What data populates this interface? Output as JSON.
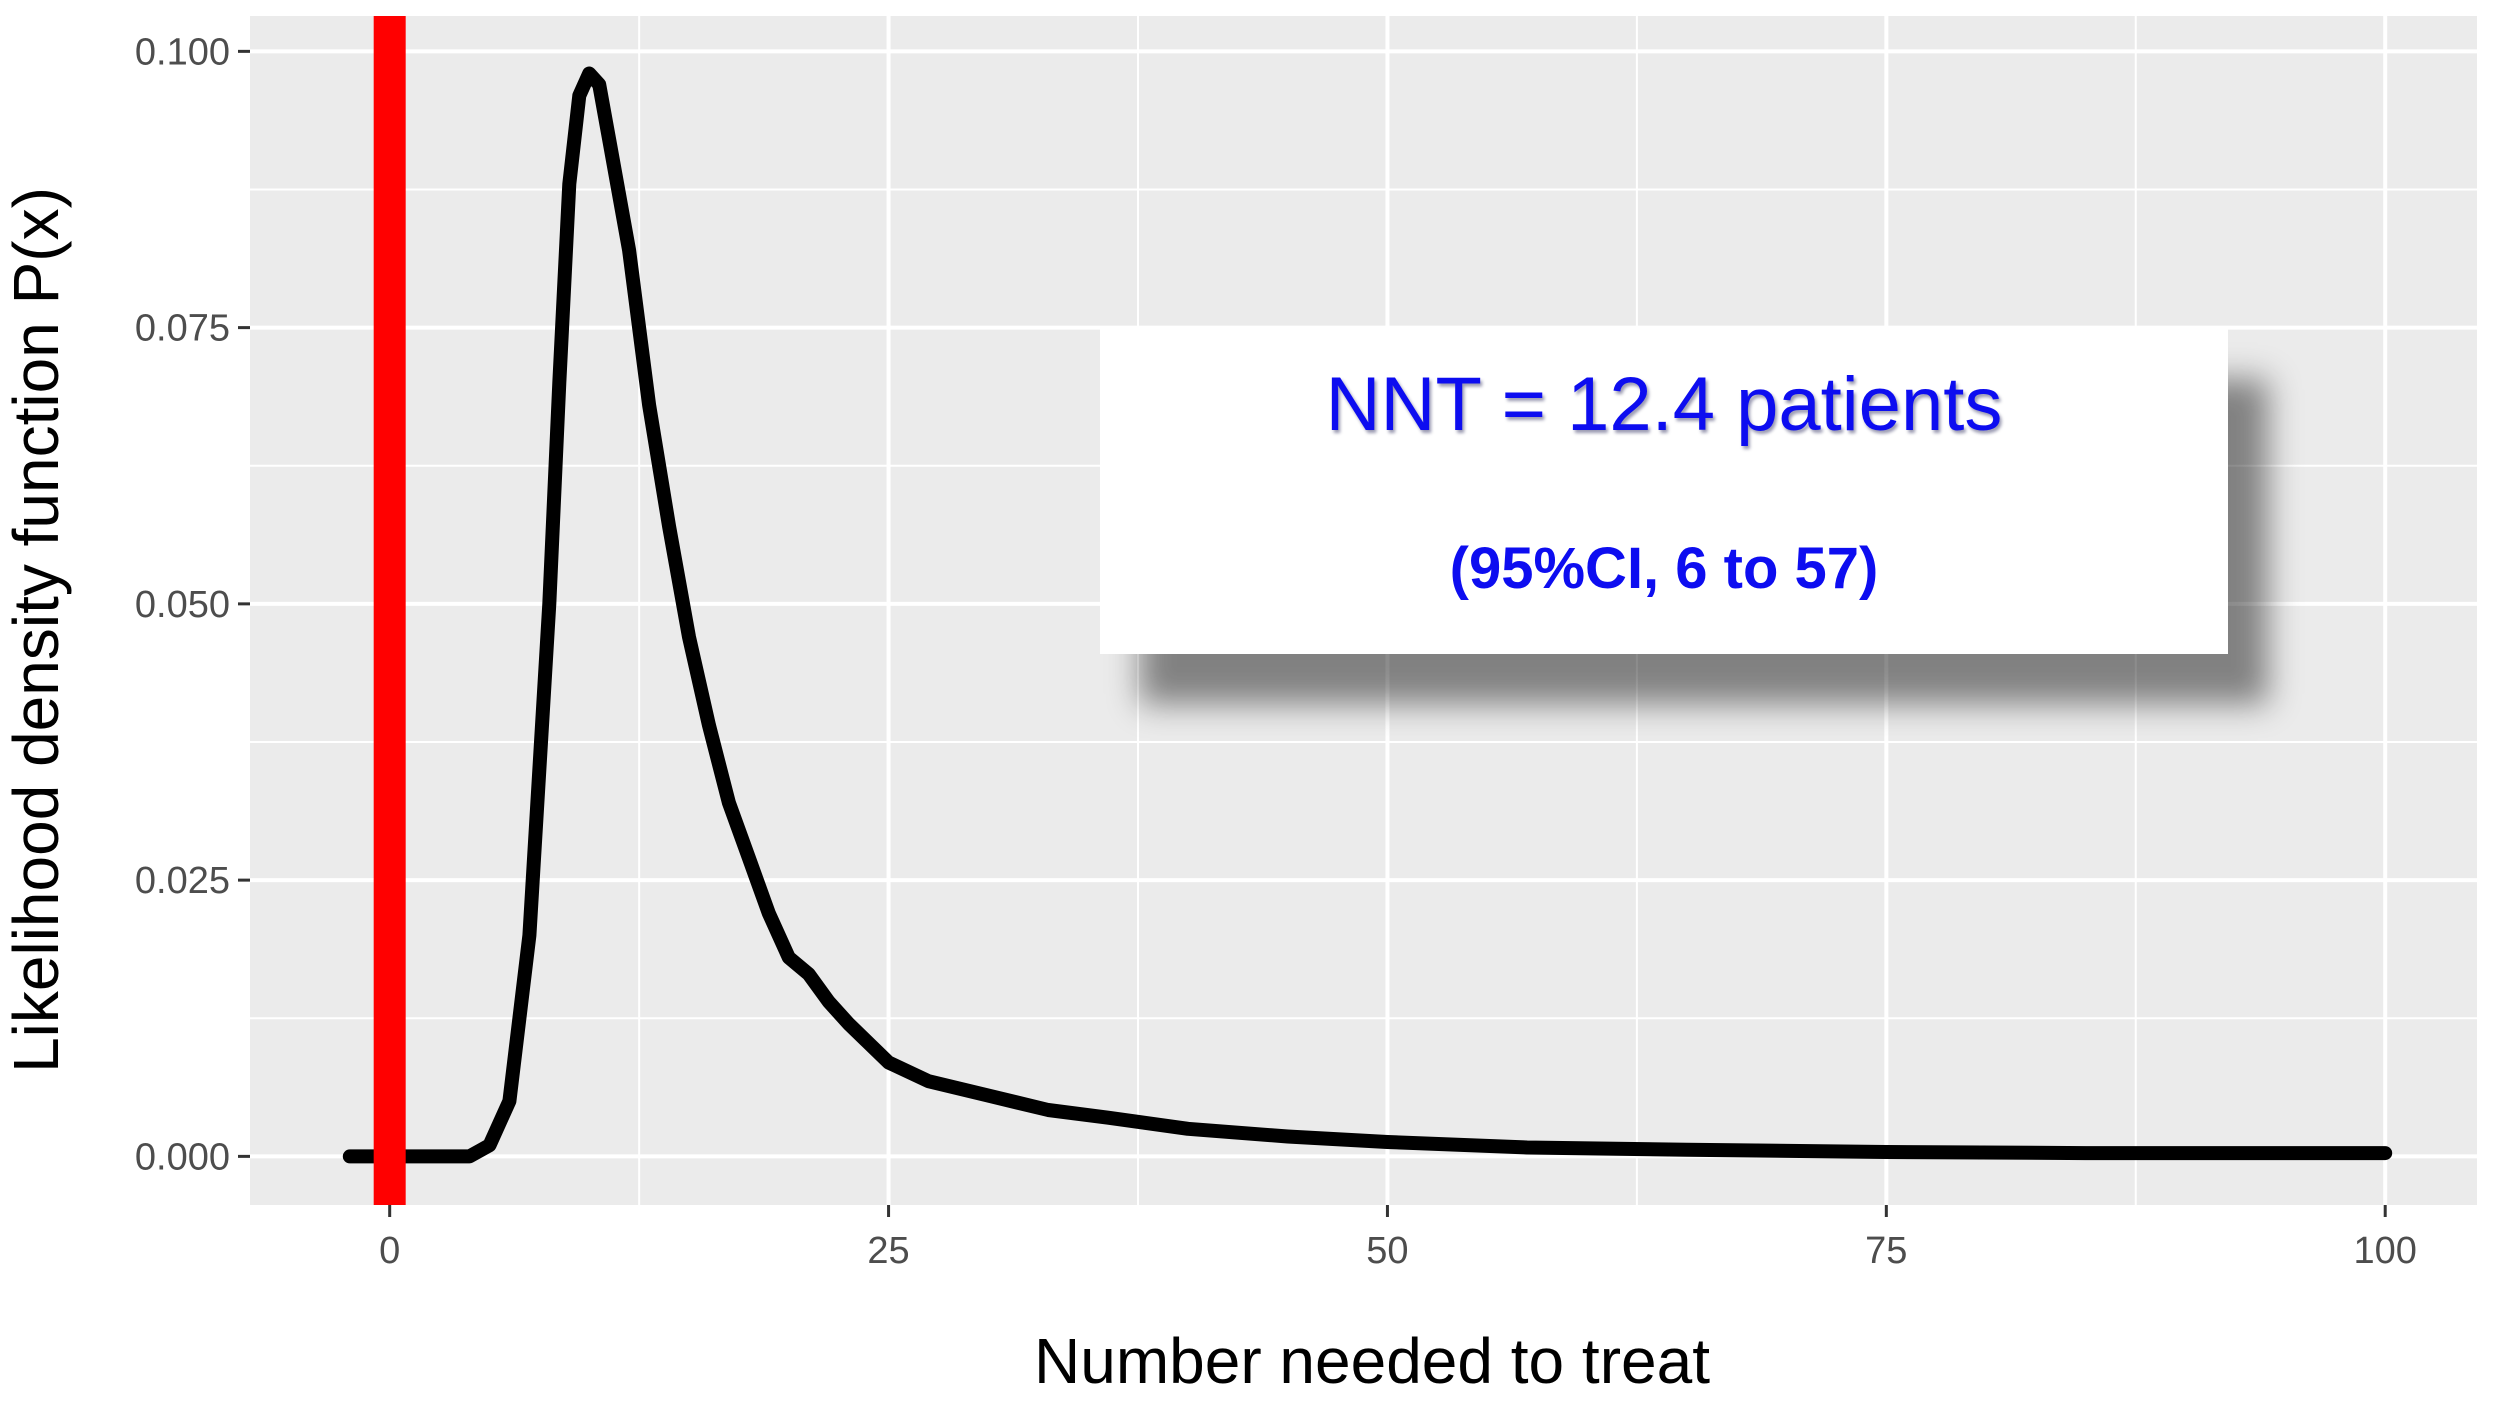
{
  "chart_data": {
    "type": "line",
    "title": "",
    "xlabel": "Number needed to treat",
    "ylabel": "Likelihood density function P(x)",
    "xlim": [
      -7,
      104.6
    ],
    "ylim": [
      -0.0044,
      0.1032
    ],
    "x_ticks": [
      0,
      25,
      50,
      75,
      100
    ],
    "x_tick_labels": [
      "0",
      "25",
      "50",
      "75",
      "100"
    ],
    "y_ticks": [
      0,
      0.025,
      0.05,
      0.075,
      0.1
    ],
    "y_tick_labels": [
      "0.000",
      "0.025",
      "0.050",
      "0.075",
      "0.100"
    ],
    "grid": true,
    "background": "#ebebeb",
    "series": [
      {
        "color": "#000000",
        "x": [
          -2,
          4,
          5,
          6,
          7,
          8,
          8.5,
          9,
          9.5,
          10,
          10.5,
          11,
          12,
          13,
          14,
          15,
          16,
          17,
          18,
          19,
          20,
          21,
          22,
          23,
          25,
          27,
          30,
          33,
          36,
          40,
          45,
          50,
          57,
          65,
          75,
          85,
          100
        ],
        "y": [
          0,
          0,
          0.001,
          0.005,
          0.02,
          0.05,
          0.07,
          0.088,
          0.096,
          0.098,
          0.097,
          0.092,
          0.082,
          0.068,
          0.057,
          0.047,
          0.039,
          0.032,
          0.027,
          0.022,
          0.018,
          0.0165,
          0.014,
          0.012,
          0.0085,
          0.0068,
          0.0055,
          0.0042,
          0.0035,
          0.0025,
          0.0018,
          0.0013,
          0.0008,
          0.0006,
          0.0004,
          0.0003,
          0.0003
        ]
      }
    ],
    "reference_line": {
      "x": 0,
      "color": "#ff0000"
    },
    "annotation": {
      "main": "NNT = 12.4 patients",
      "sub": "(95%CI, 6 to 57)",
      "color": "#0d0df0"
    }
  }
}
